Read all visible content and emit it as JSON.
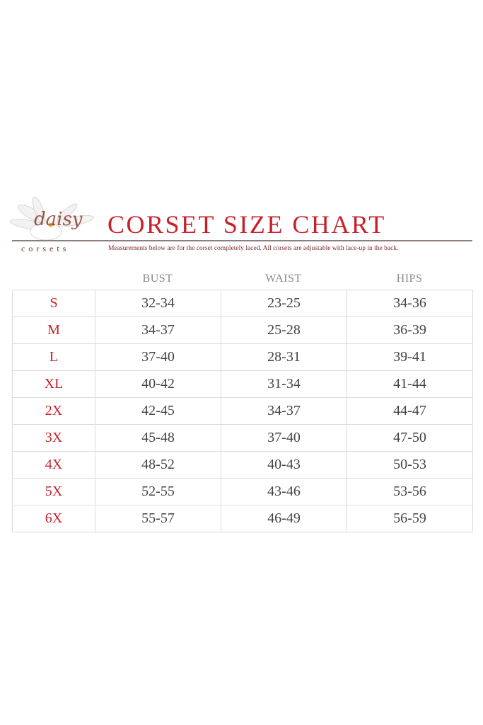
{
  "logo": {
    "script_text": "daisy",
    "brand_text": "corsets"
  },
  "title": "CORSET SIZE CHART",
  "note": "Measurements below are for the corset completely laced.  All corsets are adjustable with lace-up in the back.",
  "columns": [
    "BUST",
    "WAIST",
    "HIPS"
  ],
  "rows": [
    {
      "size": "S",
      "bust": "32-34",
      "waist": "23-25",
      "hips": "34-36"
    },
    {
      "size": "M",
      "bust": "34-37",
      "waist": "25-28",
      "hips": "36-39"
    },
    {
      "size": "L",
      "bust": "37-40",
      "waist": "28-31",
      "hips": "39-41"
    },
    {
      "size": "XL",
      "bust": "40-42",
      "waist": "31-34",
      "hips": "41-44"
    },
    {
      "size": "2X",
      "bust": "42-45",
      "waist": "34-37",
      "hips": "44-47"
    },
    {
      "size": "3X",
      "bust": "45-48",
      "waist": "37-40",
      "hips": "47-50"
    },
    {
      "size": "4X",
      "bust": "48-52",
      "waist": "40-43",
      "hips": "50-53"
    },
    {
      "size": "5X",
      "bust": "52-55",
      "waist": "43-46",
      "hips": "53-56"
    },
    {
      "size": "6X",
      "bust": "55-57",
      "waist": "46-49",
      "hips": "56-59"
    }
  ],
  "colors": {
    "accent": "#c8202a",
    "text": "#444444"
  }
}
